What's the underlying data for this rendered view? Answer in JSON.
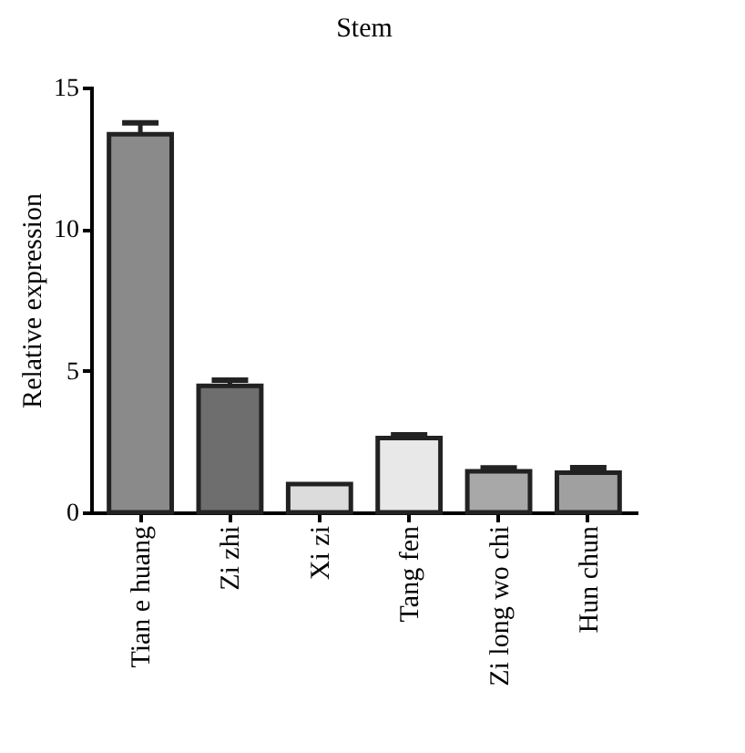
{
  "chart_data": {
    "type": "bar",
    "title": "Stem",
    "ylabel": "Relative expression",
    "categories": [
      "Tian e huang",
      "Zi zhi",
      "Xi zi",
      "Tang fen",
      "Zi long wo chi",
      "Hun chun"
    ],
    "values": [
      13.35,
      4.47,
      1.0,
      2.62,
      1.45,
      1.4
    ],
    "errors": [
      0.4,
      0.2,
      null,
      0.12,
      0.12,
      0.18
    ],
    "colors": [
      "#8a8a8a",
      "#6e6e6e",
      "#dcdcdc",
      "#e8e8e8",
      "#a8a8a8",
      "#a0a0a0"
    ],
    "ylim": [
      0,
      15
    ],
    "yticks": [
      0,
      5,
      10,
      15
    ],
    "grid": false
  }
}
